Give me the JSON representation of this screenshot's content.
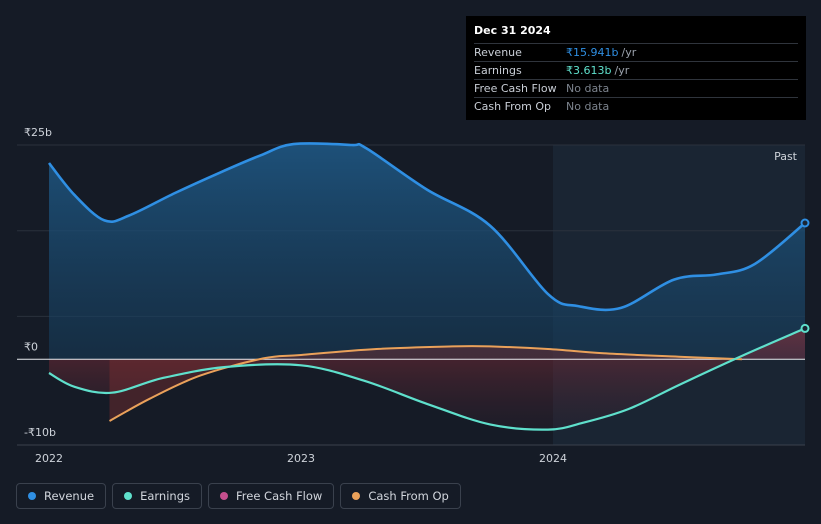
{
  "chart_data": {
    "type": "area",
    "title": "",
    "currency_prefix": "₹",
    "y_unit": "b",
    "ylim": [
      -10,
      25
    ],
    "y_ticks": [
      {
        "value": 25,
        "label": "₹25b"
      },
      {
        "value": 0,
        "label": "₹0"
      },
      {
        "value": -10,
        "label": "-₹10b"
      }
    ],
    "xlim": [
      2022.0,
      2025.0
    ],
    "x_ticks": [
      {
        "value": 2022.0,
        "label": "2022"
      },
      {
        "value": 2023.0,
        "label": "2023"
      },
      {
        "value": 2024.0,
        "label": "2024"
      }
    ],
    "forecast_region_start": 2024.0,
    "region_label": "Past",
    "series": [
      {
        "name": "Revenue",
        "color": "#2f8fe3",
        "x": [
          2022.0,
          2022.1,
          2022.22,
          2022.32,
          2022.5,
          2022.68,
          2022.84,
          2022.97,
          2023.2,
          2023.26,
          2023.5,
          2023.75,
          2023.98,
          2024.1,
          2024.27,
          2024.48,
          2024.65,
          2024.8,
          2025.0
        ],
        "values": [
          22.9,
          19.2,
          16.2,
          16.8,
          19.4,
          21.8,
          23.8,
          25.1,
          25.0,
          24.6,
          19.8,
          15.6,
          7.6,
          6.2,
          6.0,
          9.3,
          9.9,
          11.1,
          15.9
        ]
      },
      {
        "name": "Earnings",
        "color": "#5fe0cc",
        "x": [
          2022.0,
          2022.1,
          2022.25,
          2022.45,
          2022.7,
          2023.0,
          2023.25,
          2023.5,
          2023.75,
          2023.98,
          2024.12,
          2024.3,
          2024.5,
          2024.75,
          2025.0
        ],
        "values": [
          -1.6,
          -3.2,
          -3.9,
          -2.2,
          -0.9,
          -0.7,
          -2.5,
          -5.2,
          -7.6,
          -8.2,
          -7.4,
          -5.8,
          -3.0,
          0.4,
          3.6
        ]
      },
      {
        "name": "Free Cash Flow",
        "color": "#c44f8e",
        "x": [],
        "values": []
      },
      {
        "name": "Cash From Op",
        "color": "#eaa15a",
        "x": [
          2022.24,
          2022.4,
          2022.6,
          2022.85,
          2023.0,
          2023.3,
          2023.6,
          2023.75,
          2023.98,
          2024.2,
          2024.5,
          2024.75
        ],
        "values": [
          -7.2,
          -4.6,
          -1.9,
          0.1,
          0.5,
          1.2,
          1.5,
          1.5,
          1.2,
          0.7,
          0.3,
          0.0
        ]
      }
    ]
  },
  "tooltip": {
    "date": "Dec 31 2024",
    "rows": [
      {
        "label": "Revenue",
        "value": "₹15.941b",
        "unit": "/yr",
        "color": "#2f8fe3"
      },
      {
        "label": "Earnings",
        "value": "₹3.613b",
        "unit": "/yr",
        "color": "#5fe0cc"
      },
      {
        "label": "Free Cash Flow",
        "value": "No data",
        "unit": "",
        "color": "#7c838d"
      },
      {
        "label": "Cash From Op",
        "value": "No data",
        "unit": "",
        "color": "#7c838d"
      }
    ]
  },
  "legend": [
    {
      "label": "Revenue",
      "color": "#2f8fe3"
    },
    {
      "label": "Earnings",
      "color": "#5fe0cc"
    },
    {
      "label": "Free Cash Flow",
      "color": "#c44f8e"
    },
    {
      "label": "Cash From Op",
      "color": "#eaa15a"
    }
  ]
}
